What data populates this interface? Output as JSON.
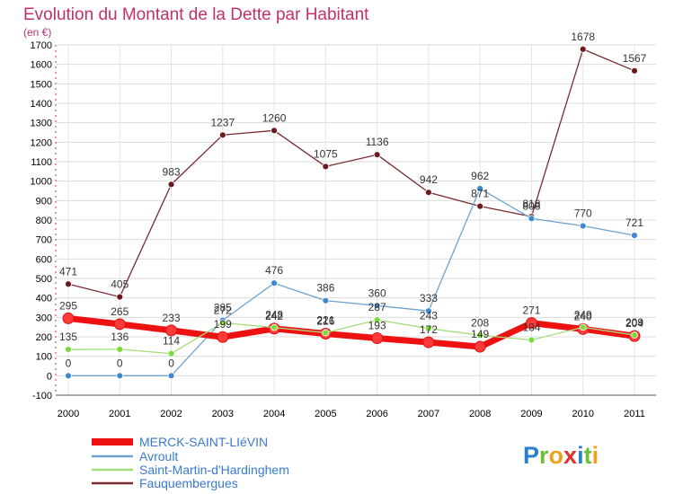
{
  "chart_data": {
    "type": "line",
    "title": "Evolution du Montant de la Dette par Habitant",
    "subtitle": "(en €)",
    "categories": [
      "2000",
      "2001",
      "2002",
      "2003",
      "2004",
      "2005",
      "2006",
      "2007",
      "2008",
      "2009",
      "2010",
      "2011"
    ],
    "ylim": [
      -100,
      1700
    ],
    "yticks": [
      -100,
      0,
      100,
      200,
      300,
      400,
      500,
      600,
      700,
      800,
      900,
      1000,
      1100,
      1200,
      1300,
      1400,
      1500,
      1600,
      1700
    ],
    "grid": true,
    "legend_position": "bottom-left",
    "series": [
      {
        "name": "MERCK-SAINT-LIéVIN",
        "color": "#ee1111",
        "marker": "#ff3a3a",
        "values": [
          295,
          265,
          233,
          199,
          242,
          216,
          193,
          172,
          149,
          271,
          240,
          204
        ]
      },
      {
        "name": "Avroult",
        "color": "#6ea2d2",
        "marker": "#3d8ad0",
        "values": [
          0,
          0,
          0,
          285,
          476,
          386,
          360,
          333,
          962,
          808,
          770,
          721
        ]
      },
      {
        "name": "Saint-Martin-d'Hardinghem",
        "color": "#a2de7a",
        "marker": "#7cdb3a",
        "values": [
          135,
          136,
          114,
          272,
          248,
          221,
          287,
          243,
          208,
          184,
          249,
          209
        ]
      },
      {
        "name": "Fauquembergues",
        "color": "#7a2a30",
        "marker": "#6a1a1f",
        "values": [
          471,
          405,
          983,
          1237,
          1260,
          1075,
          1136,
          942,
          871,
          818,
          1678,
          1567
        ]
      }
    ]
  },
  "branding": {
    "logo_text": "Proxiti"
  }
}
